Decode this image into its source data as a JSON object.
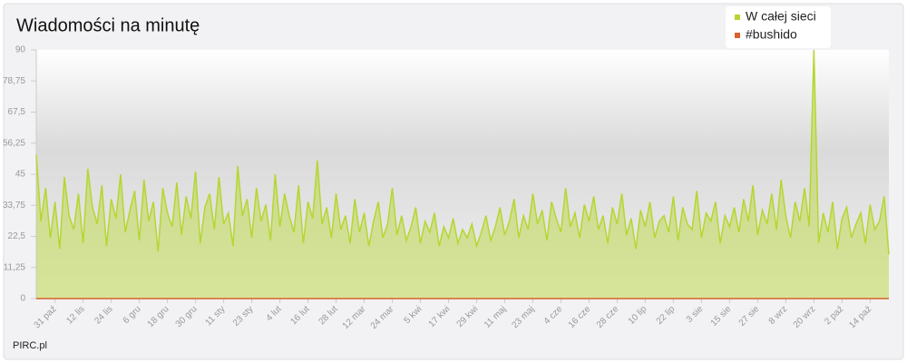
{
  "chart_data": {
    "type": "area",
    "title": "Wiadomości na minutę",
    "credit": "PIRC.pl",
    "categories": [
      null,
      null,
      null,
      null,
      "31 paź",
      null,
      null,
      null,
      null,
      null,
      "12 lis",
      null,
      null,
      null,
      null,
      null,
      "24 lis",
      null,
      null,
      null,
      null,
      null,
      "6 gru",
      null,
      null,
      null,
      null,
      null,
      "18 gru",
      null,
      null,
      null,
      null,
      null,
      "30 gru",
      null,
      null,
      null,
      null,
      null,
      "11 sty",
      null,
      null,
      null,
      null,
      null,
      "23 sty",
      null,
      null,
      null,
      null,
      null,
      "4 lut",
      null,
      null,
      null,
      null,
      null,
      "16 lut",
      null,
      null,
      null,
      null,
      null,
      "28 lut",
      null,
      null,
      null,
      null,
      null,
      "12 mar",
      null,
      null,
      null,
      null,
      null,
      "24 mar",
      null,
      null,
      null,
      null,
      null,
      "5 kwi",
      null,
      null,
      null,
      null,
      null,
      "17 kwi",
      null,
      null,
      null,
      null,
      null,
      "29 kwi",
      null,
      null,
      null,
      null,
      null,
      "11 maj",
      null,
      null,
      null,
      null,
      null,
      "23 maj",
      null,
      null,
      null,
      null,
      null,
      "4 cze",
      null,
      null,
      null,
      null,
      null,
      "16 cze",
      null,
      null,
      null,
      null,
      null,
      "28 cze",
      null,
      null,
      null,
      null,
      null,
      "10 lip",
      null,
      null,
      null,
      null,
      null,
      "22 lip",
      null,
      null,
      null,
      null,
      null,
      "3 sie",
      null,
      null,
      null,
      null,
      null,
      "15 sie",
      null,
      null,
      null,
      null,
      null,
      "27 sie",
      null,
      null,
      null,
      null,
      null,
      "8 wrz",
      null,
      null,
      null,
      null,
      null,
      "20 wrz",
      null,
      null,
      null,
      null,
      null,
      "2 paź",
      null,
      null,
      null,
      null,
      null,
      "14 paź",
      null,
      null,
      null,
      null
    ],
    "series": [
      {
        "name": "W całej sieci",
        "color": "#b5d630",
        "values": [
          52,
          28,
          40,
          22,
          35,
          18,
          44,
          30,
          25,
          38,
          20,
          47,
          33,
          27,
          41,
          19,
          36,
          29,
          45,
          24,
          32,
          39,
          21,
          43,
          28,
          35,
          17,
          40,
          31,
          26,
          42,
          23,
          37,
          29,
          46,
          20,
          33,
          38,
          25,
          44,
          27,
          31,
          19,
          48,
          30,
          36,
          22,
          40,
          28,
          34,
          21,
          45,
          26,
          38,
          30,
          24,
          41,
          20,
          35,
          29,
          50,
          27,
          33,
          22,
          38,
          25,
          30,
          20,
          36,
          24,
          31,
          19,
          28,
          35,
          22,
          27,
          40,
          23,
          30,
          21,
          26,
          33,
          20,
          28,
          24,
          31,
          19,
          26,
          22,
          29,
          20,
          25,
          22,
          27,
          19,
          24,
          30,
          21,
          26,
          33,
          23,
          28,
          36,
          22,
          30,
          25,
          38,
          27,
          32,
          21,
          35,
          29,
          24,
          40,
          26,
          31,
          22,
          34,
          28,
          37,
          25,
          30,
          20,
          33,
          27,
          38,
          23,
          29,
          18,
          32,
          26,
          35,
          22,
          28,
          30,
          24,
          37,
          21,
          33,
          27,
          25,
          39,
          22,
          31,
          28,
          35,
          20,
          30,
          26,
          33,
          24,
          36,
          28,
          41,
          23,
          32,
          27,
          38,
          25,
          43,
          30,
          22,
          35,
          28,
          40,
          26,
          90,
          20,
          31,
          24,
          35,
          18,
          29,
          33,
          22,
          27,
          31,
          20,
          34,
          25,
          28,
          37,
          16
        ]
      },
      {
        "name": "#bushido",
        "color": "#d9622b",
        "values": [
          0,
          0,
          0,
          0,
          0,
          0,
          0,
          0,
          0,
          0,
          0,
          0,
          0,
          0,
          0,
          0,
          0,
          0,
          0,
          0,
          0,
          0,
          0,
          0,
          0,
          0,
          0,
          0,
          0,
          0,
          0,
          0,
          0,
          0,
          0,
          0,
          0,
          0,
          0,
          0,
          0,
          0,
          0,
          0,
          0,
          0,
          0,
          0,
          0,
          0,
          0,
          0,
          0,
          0,
          0,
          0,
          0,
          0,
          0,
          0,
          0,
          0,
          0,
          0,
          0,
          0,
          0,
          0,
          0,
          0,
          0,
          0,
          0,
          0,
          0,
          0,
          0,
          0,
          0,
          0,
          0,
          0,
          0,
          0,
          0,
          0,
          0,
          0,
          0,
          0,
          0,
          0,
          0,
          0,
          0,
          0,
          0,
          0,
          0,
          0,
          0,
          0,
          0,
          0,
          0,
          0,
          0,
          0,
          0,
          0,
          0,
          0,
          0,
          0,
          0,
          0,
          0,
          0,
          0,
          0,
          0,
          0,
          0,
          0,
          0,
          0,
          0,
          0,
          0,
          0,
          0,
          0,
          0,
          0,
          0,
          0,
          0,
          0,
          0,
          0,
          0,
          0,
          0,
          0,
          0,
          0,
          0,
          0,
          0,
          0,
          0,
          0,
          0,
          0,
          0,
          0,
          0,
          0,
          0,
          0,
          0,
          0,
          0,
          0,
          0,
          0,
          0,
          0,
          0,
          0,
          0,
          0,
          0,
          0,
          0,
          0,
          0,
          0,
          0,
          0,
          0,
          0,
          0
        ]
      }
    ],
    "ylim": [
      0,
      90
    ],
    "yticks": [
      0,
      {
        "value": 11.25,
        "label": "11,25"
      },
      {
        "value": 22.5,
        "label": "22,5"
      },
      {
        "value": 33.75,
        "label": "33,75"
      },
      45,
      {
        "value": 56.25,
        "label": "56,25"
      },
      {
        "value": 67.5,
        "label": "67,5"
      },
      {
        "value": 78.75,
        "label": "78,75"
      },
      90
    ],
    "legend": "top-right"
  }
}
